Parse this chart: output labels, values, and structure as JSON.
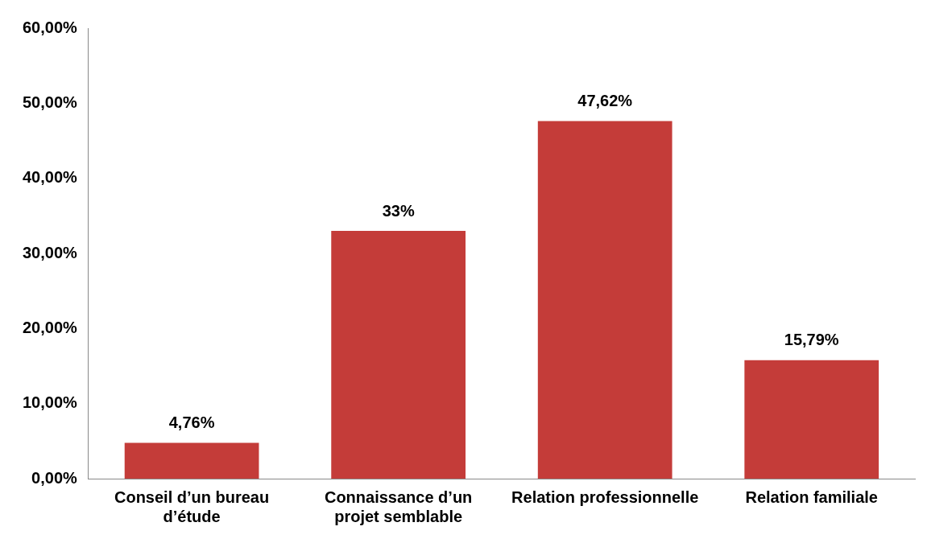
{
  "chart_data": {
    "type": "bar",
    "categories": [
      "Conseil d’un bureau d’étude",
      "Connaissance d’un projet semblable",
      "Relation professionnelle",
      "Relation familiale"
    ],
    "values": [
      4.76,
      33,
      47.62,
      15.79
    ],
    "value_labels": [
      "4,76%",
      "33%",
      "47,62%",
      "15,79%"
    ],
    "color": "#c43c39",
    "ylim": [
      0,
      60
    ],
    "yticks": [
      {
        "value": 0,
        "label": "0,00%"
      },
      {
        "value": 10,
        "label": "10,00%"
      },
      {
        "value": 20,
        "label": "20,00%"
      },
      {
        "value": 30,
        "label": "30,00%"
      },
      {
        "value": 40,
        "label": "40,00%"
      },
      {
        "value": 50,
        "label": "50,00%"
      },
      {
        "value": 60,
        "label": "60,00%"
      }
    ],
    "grid": false,
    "legend": false
  }
}
